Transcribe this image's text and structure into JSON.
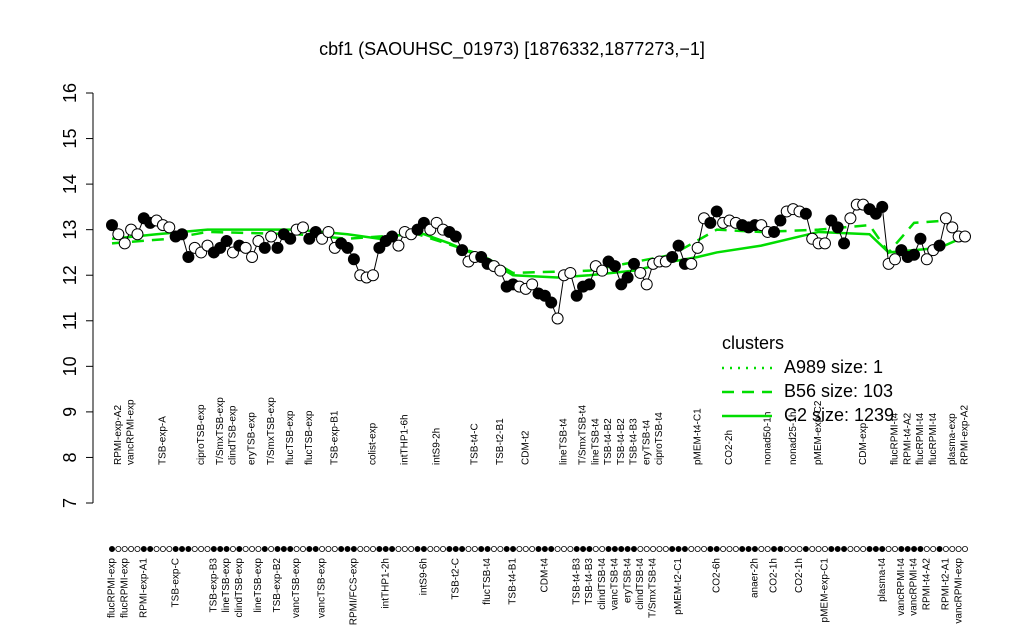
{
  "chart_data": {
    "type": "scatter",
    "title": "cbf1 (SAOUHSC_01973) [1876332,1877273,−1]",
    "ylim": [
      7,
      16
    ],
    "yticks": [
      7,
      8,
      9,
      10,
      11,
      12,
      13,
      14,
      15,
      16
    ],
    "categories": [
      "flucRPMI-exp",
      "RPMI-exp-A2",
      "flucRPMI-exp",
      "vancRPMI-exp",
      null,
      "RPMI-exp-A1",
      null,
      null,
      "TSB-exp-A",
      null,
      "TSB-exp-C",
      null,
      null,
      null,
      "ciproTSB-exp",
      null,
      "TSB-exp-B3",
      "T/SmxTSB-exp",
      "lineTSB-exp",
      "clindTSB-exp",
      "clindTSB-exp",
      null,
      "eryTSB-exp",
      "lineTSB-exp",
      null,
      "T/SmxTSB-exp",
      "TSB-exp-B2",
      null,
      "flucTSB-exp",
      "vancTSB-exp",
      null,
      "flucTSB-exp",
      null,
      "vancTSB-exp",
      null,
      "TSB-exp-B1",
      null,
      null,
      "RPMI/FCS-exp",
      null,
      null,
      "colist-exp",
      null,
      "intTHP1-2h",
      null,
      null,
      "intTHP1-6h",
      null,
      null,
      "intS9-6h",
      null,
      "intS9-2h",
      null,
      null,
      "TSB-t2-C",
      null,
      null,
      "TSB-t4-C",
      null,
      "flucTSB-t4",
      null,
      "TSB-t2-B1",
      null,
      "TSB-t4-B1",
      null,
      "CDM-t2",
      null,
      null,
      "CDM-t4",
      null,
      null,
      "lineTSB-t4",
      null,
      "TSB-t4-B3",
      "T/SmxTSB-t4",
      "TSB-t4-B3",
      "lineTSB-t4",
      "clindTSB-t4",
      "TSB-t4-B2",
      "vancTSB-t4",
      "TSB-t4-B2",
      "eryTSB-t4",
      "TSB-t4-B3",
      "clindTSB-t4",
      "eryTSB-t4",
      "T/SmxTSB-t4",
      "ciproTSB-t4",
      null,
      null,
      "pMEM-t2-C1",
      null,
      null,
      "pMEM-t4-C1",
      null,
      null,
      "CO2-6h",
      null,
      "CO2-2h",
      null,
      null,
      null,
      "anaer-2h",
      null,
      "nonad50-1h",
      "CO2-1h",
      null,
      null,
      "nonad25-1h",
      "CO2-1h",
      null,
      null,
      "pMEM-exp-C2",
      "pMEM-exp-C1",
      null,
      null,
      null,
      null,
      null,
      "CDM-exp",
      null,
      null,
      "plasma-t4",
      null,
      "flucRPMI-t4",
      "vancRPMI-t4",
      "RPMI-t4-A2",
      "vancRPMI-t4",
      "flucRPMI-t4",
      "RPMI-t4-A2",
      "flucRPMI-t4",
      null,
      "RPMI-t2-A1",
      "plasma-exp",
      "vancRPMI-exp",
      "RPMI-exp-A2"
    ],
    "values": [
      13.1,
      12.9,
      12.7,
      13.0,
      12.9,
      13.25,
      13.15,
      13.2,
      13.1,
      13.05,
      12.85,
      12.9,
      12.4,
      12.6,
      12.5,
      12.65,
      12.5,
      12.6,
      12.75,
      12.5,
      12.65,
      12.6,
      12.4,
      12.75,
      12.6,
      12.85,
      12.6,
      12.9,
      12.8,
      13.0,
      13.05,
      12.8,
      12.95,
      12.8,
      12.95,
      12.6,
      12.7,
      12.6,
      12.35,
      12.0,
      11.95,
      12.0,
      12.6,
      12.75,
      12.85,
      12.65,
      12.95,
      12.9,
      13.0,
      13.15,
      13.0,
      13.15,
      13.0,
      12.95,
      12.85,
      12.55,
      12.3,
      12.4,
      12.4,
      12.25,
      12.2,
      12.1,
      11.75,
      11.8,
      11.75,
      11.7,
      11.8,
      11.6,
      11.55,
      11.4,
      11.05,
      12.0,
      12.05,
      11.55,
      11.75,
      11.8,
      12.2,
      12.1,
      12.3,
      12.2,
      11.8,
      11.95,
      12.25,
      12.05,
      11.8,
      12.25,
      12.3,
      12.3,
      12.4,
      12.65,
      12.25,
      12.25,
      12.6,
      13.25,
      13.15,
      13.4,
      13.15,
      13.2,
      13.15,
      13.1,
      13.05,
      13.1,
      13.1,
      12.95,
      12.95,
      13.2,
      13.4,
      13.45,
      13.4,
      13.35,
      12.8,
      12.7,
      12.7,
      13.2,
      13.05,
      12.7,
      13.25,
      13.55,
      13.55,
      13.45,
      13.35,
      13.5,
      12.25,
      12.35,
      12.55,
      12.4,
      12.45,
      12.8,
      12.35,
      12.55,
      12.65,
      13.25,
      13.05,
      12.85,
      12.85
    ],
    "point_fill": [
      "black",
      "white",
      "white",
      "white",
      "white",
      "black",
      "black",
      "white",
      "white",
      "white",
      "black",
      "black",
      "black",
      "white",
      "white",
      "white",
      "black",
      "black",
      "black",
      "white",
      "black",
      "white",
      "white",
      "white",
      "black",
      "white",
      "black",
      "black",
      "black",
      "white",
      "white",
      "black",
      "black",
      "white",
      "white",
      "white",
      "black",
      "black",
      "black",
      "white",
      "white",
      "white",
      "black",
      "black",
      "black",
      "white",
      "white",
      "white",
      "black",
      "black",
      "white",
      "white",
      "white",
      "black",
      "black",
      "black",
      "white",
      "white",
      "black",
      "black",
      "white",
      "white",
      "black",
      "black",
      "white",
      "white",
      "white",
      "black",
      "black",
      "black",
      "white",
      "white",
      "white",
      "black",
      "black",
      "black",
      "white",
      "white",
      "black",
      "black",
      "black",
      "black",
      "black",
      "white",
      "white",
      "white",
      "white",
      "white",
      "black",
      "black",
      "black",
      "white",
      "white",
      "white",
      "black",
      "black",
      "white",
      "white",
      "white",
      "black",
      "black",
      "black",
      "white",
      "white",
      "black",
      "black",
      "white",
      "white",
      "white",
      "black",
      "white",
      "white",
      "white",
      "black",
      "black",
      "black",
      "white",
      "white",
      "white",
      "black",
      "black",
      "black",
      "white",
      "white",
      "black",
      "black",
      "black",
      "black",
      "white",
      "white",
      "black",
      "white",
      "white",
      "white",
      "white"
    ],
    "legend_title": "clusters",
    "legend": "right",
    "series": [
      {
        "name": "A989 size: 1",
        "color": "#00dd00",
        "style": "dotted"
      },
      {
        "name": "B56 size: 103",
        "color": "#00dd00",
        "style": "dashed",
        "x": [
          0,
          9,
          15,
          29,
          37,
          42,
          48,
          58,
          63,
          75,
          88,
          95,
          102,
          111,
          119,
          122,
          126,
          131,
          134
        ],
        "values": [
          12.7,
          12.8,
          12.95,
          12.9,
          12.8,
          12.85,
          12.9,
          12.45,
          12.05,
          12.1,
          12.45,
          13.0,
          12.95,
          13.0,
          13.1,
          12.5,
          13.15,
          13.2,
          12.85
        ]
      },
      {
        "name": "C2 size: 1239",
        "color": "#00dd00",
        "style": "solid",
        "x": [
          0,
          7,
          15,
          29,
          37,
          42,
          48,
          53,
          58,
          63,
          70,
          75,
          82,
          88,
          92,
          95,
          102,
          111,
          119,
          122,
          130,
          134
        ],
        "values": [
          12.8,
          12.9,
          13.0,
          13.0,
          12.9,
          12.8,
          12.95,
          12.7,
          12.4,
          12.0,
          11.95,
          12.0,
          12.1,
          12.3,
          12.4,
          12.5,
          12.65,
          12.95,
          12.9,
          12.5,
          12.6,
          12.85
        ]
      }
    ]
  }
}
